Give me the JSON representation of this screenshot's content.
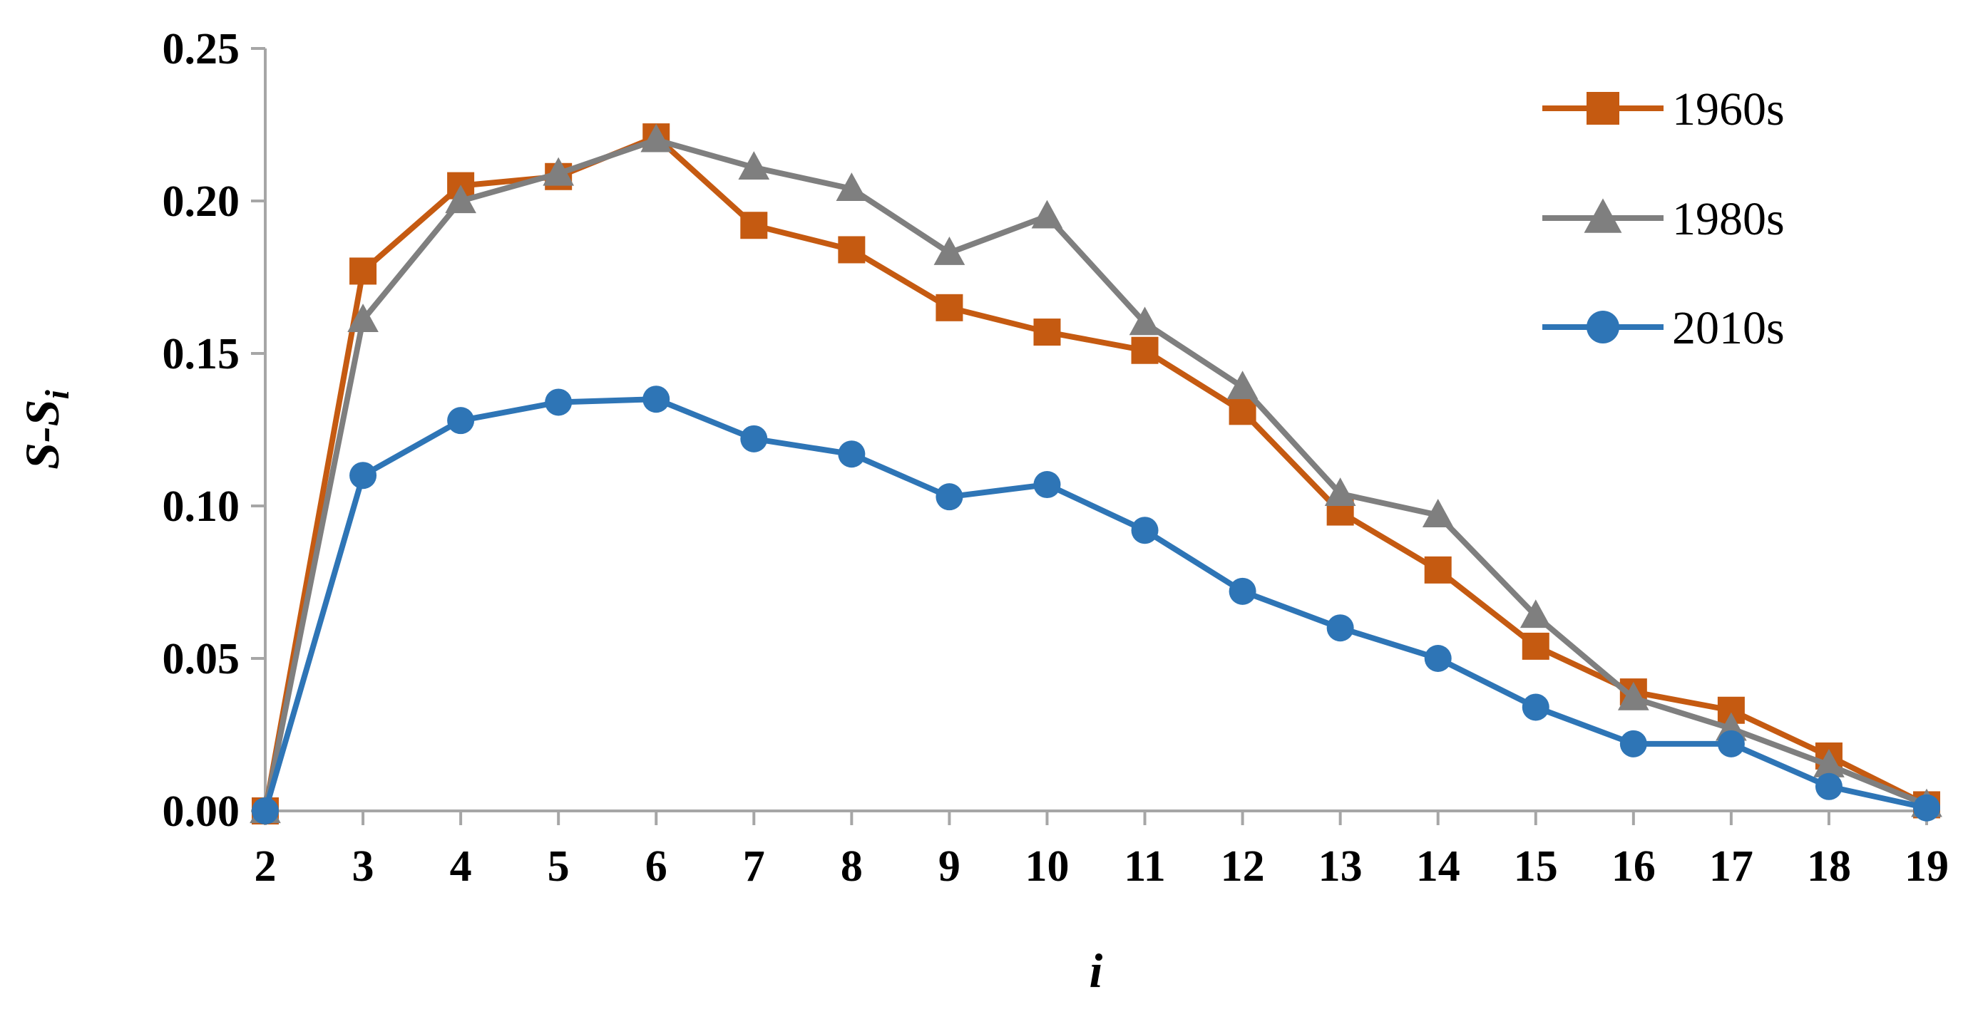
{
  "chart_data": {
    "type": "line",
    "title": "",
    "xlabel": "i",
    "ylabel": {
      "main": "S-S",
      "subscript": "i"
    },
    "x": [
      2,
      3,
      4,
      5,
      6,
      7,
      8,
      9,
      10,
      11,
      12,
      13,
      14,
      15,
      16,
      17,
      18,
      19
    ],
    "xtick_labels": [
      "2",
      "3",
      "4",
      "5",
      "6",
      "7",
      "8",
      "9",
      "10",
      "11",
      "12",
      "13",
      "14",
      "15",
      "16",
      "17",
      "18",
      "19"
    ],
    "xlim": [
      2,
      19
    ],
    "ylim": [
      0,
      0.25
    ],
    "yticks": [
      0,
      0.05,
      0.1,
      0.15,
      0.2,
      0.25
    ],
    "ytick_labels": [
      "0.00",
      "0.05",
      "0.10",
      "0.15",
      "0.20",
      "0.25"
    ],
    "grid": false,
    "legend": "top-right",
    "series": [
      {
        "name": "1960s",
        "color": "#C55A11",
        "marker": "square",
        "values": [
          0.0,
          0.177,
          0.205,
          0.208,
          0.221,
          0.192,
          0.184,
          0.165,
          0.157,
          0.151,
          0.131,
          0.098,
          0.079,
          0.054,
          0.039,
          0.033,
          0.018,
          0.002
        ]
      },
      {
        "name": "1980s",
        "color": "#7F7F7F",
        "marker": "triangle",
        "values": [
          0.0,
          0.161,
          0.2,
          0.209,
          0.22,
          0.211,
          0.204,
          0.183,
          0.195,
          0.16,
          0.139,
          0.104,
          0.097,
          0.064,
          0.037,
          0.027,
          0.015,
          0.002
        ]
      },
      {
        "name": "2010s",
        "color": "#2E75B6",
        "marker": "circle",
        "values": [
          0.0,
          0.11,
          0.128,
          0.134,
          0.135,
          0.122,
          0.117,
          0.103,
          0.107,
          0.092,
          0.072,
          0.06,
          0.05,
          0.034,
          0.022,
          0.022,
          0.008,
          0.001
        ]
      }
    ]
  }
}
